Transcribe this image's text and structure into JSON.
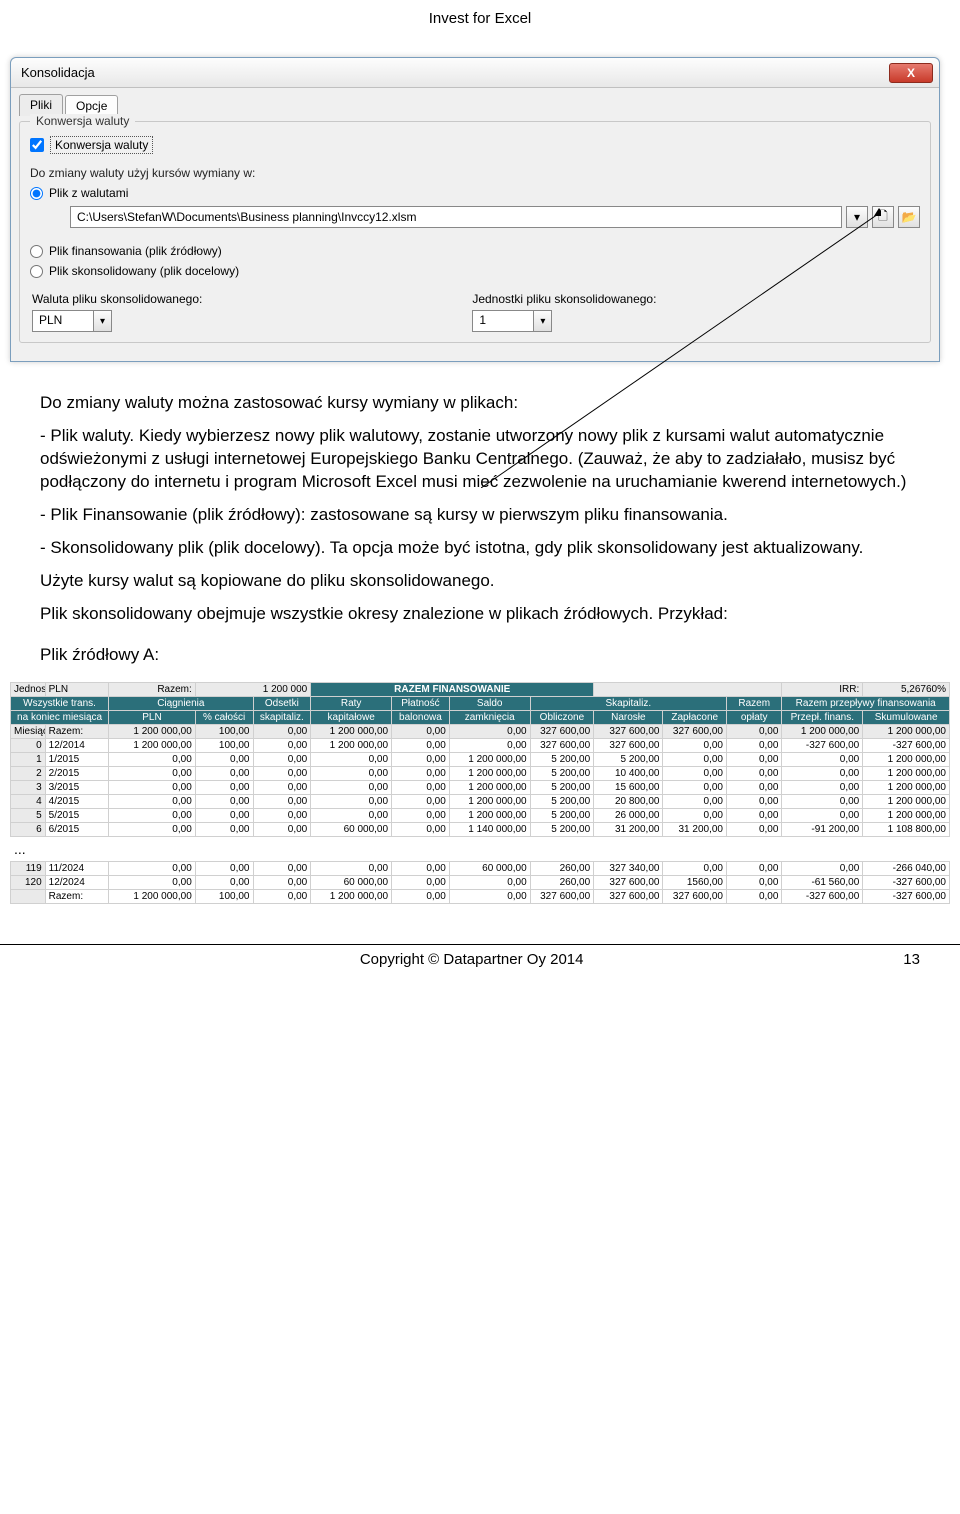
{
  "header": "Invest for Excel",
  "dialog": {
    "title": "Konsolidacja",
    "close": "X",
    "tabs": {
      "t1": "Pliki",
      "t2": "Opcje"
    },
    "group_legend": "Konwersja waluty",
    "chk_label": "Konwersja waluty",
    "subtext": "Do zmiany waluty użyj kursów wymiany w:",
    "radio1": "Plik z walutami",
    "path": "C:\\Users\\StefanW\\Documents\\Business planning\\Invccy12.xlsm",
    "radio2": "Plik finansowania (plik źródłowy)",
    "radio3": "Plik skonsolidowany (plik docelowy)",
    "label_currency": "Waluta pliku skonsolidowanego:",
    "val_currency": "PLN",
    "label_units": "Jednostki pliku skonsolidowanego:",
    "val_units": "1"
  },
  "content": {
    "p1": "Do zmiany waluty można zastosować kursy wymiany w plikach:",
    "p2": "- Plik waluty. Kiedy wybierzesz nowy plik walutowy, zostanie utworzony nowy plik z kursami walut automatycznie odświeżonymi z usługi internetowej Europejskiego Banku Centralnego. (Zauważ, że aby to zadziałało, musisz być podłączony do internetu i program Microsoft Excel musi mieć zezwolenie na uruchamianie kwerend internetowych.)",
    "p3": "- Plik Finansowanie (plik źródłowy): zastosowane są kursy w pierwszym pliku finansowania.",
    "p4": "- Skonsolidowany plik (plik docelowy). Ta opcja może być istotna, gdy plik skonsolidowany jest aktualizowany.",
    "p5": "Użyte kursy walut są kopiowane do pliku skonsolidowanego.",
    "p6": "Plik skonsolidowany obejmuje wszystkie okresy znalezione w plikach źródłowych. Przykład:",
    "p7": "Plik źródłowy A:"
  },
  "table": {
    "top": {
      "unit_lbl": "Jednostka:",
      "unit_val": "PLN",
      "razem_lbl": "Razem:",
      "razem_val": "1 200 000",
      "razem_fin": "RAZEM FINANSOWANIE",
      "irr_lbl": "IRR:",
      "irr_val": "5,26760%"
    },
    "h1": {
      "c1": "Wszystkie trans.",
      "c2": "Ciągnienia",
      "c3": "Odsetki",
      "c4": "Raty",
      "c5": "Płatność",
      "c6": "Saldo",
      "c7": "Skapitaliz.",
      "c8": "Razem",
      "c9": "Razem przepływy finansowania"
    },
    "h2": {
      "c1": "na koniec miesiąca",
      "c2": "PLN",
      "c3": "% całości",
      "c4": "skapitaliz.",
      "c5": "kapitałowe",
      "c6": "balonowa",
      "c7": "zamknięcia",
      "c8": "Obliczone",
      "c9": "Narosłe",
      "c10": "Zapłacone",
      "c11": "opłaty",
      "c12": "Przepł. finans.",
      "c13": "Skumulowane"
    },
    "h3": {
      "miesiac": "Miesiąc",
      "razem": "Razem:"
    },
    "rows": [
      {
        "n": "0",
        "m": "12/2014",
        "c": [
          "1 200 000,00",
          "100,00",
          "0,00",
          "1 200 000,00",
          "0,00",
          "0,00",
          "327 600,00",
          "327 600,00",
          "0,00",
          "0,00",
          "-327 600,00",
          "-327 600,00"
        ]
      },
      {
        "n": "1",
        "m": "1/2015",
        "c": [
          "0,00",
          "0,00",
          "0,00",
          "0,00",
          "0,00",
          "1 200 000,00",
          "5 200,00",
          "5 200,00",
          "0,00",
          "0,00",
          "0,00",
          "1 200 000,00"
        ]
      },
      {
        "n": "2",
        "m": "2/2015",
        "c": [
          "0,00",
          "0,00",
          "0,00",
          "0,00",
          "0,00",
          "1 200 000,00",
          "5 200,00",
          "10 400,00",
          "0,00",
          "0,00",
          "0,00",
          "1 200 000,00"
        ]
      },
      {
        "n": "3",
        "m": "3/2015",
        "c": [
          "0,00",
          "0,00",
          "0,00",
          "0,00",
          "0,00",
          "1 200 000,00",
          "5 200,00",
          "15 600,00",
          "0,00",
          "0,00",
          "0,00",
          "1 200 000,00"
        ]
      },
      {
        "n": "4",
        "m": "4/2015",
        "c": [
          "0,00",
          "0,00",
          "0,00",
          "0,00",
          "0,00",
          "1 200 000,00",
          "5 200,00",
          "20 800,00",
          "0,00",
          "0,00",
          "0,00",
          "1 200 000,00"
        ]
      },
      {
        "n": "5",
        "m": "5/2015",
        "c": [
          "0,00",
          "0,00",
          "0,00",
          "0,00",
          "0,00",
          "1 200 000,00",
          "5 200,00",
          "26 000,00",
          "0,00",
          "0,00",
          "0,00",
          "1 200 000,00"
        ]
      },
      {
        "n": "6",
        "m": "6/2015",
        "c": [
          "0,00",
          "0,00",
          "0,00",
          "60 000,00",
          "0,00",
          "1 140 000,00",
          "5 200,00",
          "31 200,00",
          "31 200,00",
          "0,00",
          "-91 200,00",
          "1 108 800,00"
        ]
      }
    ],
    "rows2": [
      {
        "n": "119",
        "m": "11/2024",
        "c": [
          "0,00",
          "0,00",
          "0,00",
          "0,00",
          "0,00",
          "60 000,00",
          "260,00",
          "327 340,00",
          "0,00",
          "0,00",
          "0,00",
          "-266 040,00"
        ]
      },
      {
        "n": "120",
        "m": "12/2024",
        "c": [
          "0,00",
          "0,00",
          "0,00",
          "60 000,00",
          "0,00",
          "0,00",
          "260,00",
          "327 600,00",
          "1560,00",
          "0,00",
          "-61 560,00",
          "-327 600,00"
        ]
      },
      {
        "n": "",
        "m": "Razem:",
        "c": [
          "1 200 000,00",
          "100,00",
          "0,00",
          "1 200 000,00",
          "0,00",
          "0,00",
          "327 600,00",
          "327 600,00",
          "327 600,00",
          "0,00",
          "-327 600,00",
          "-327 600,00"
        ]
      }
    ],
    "colw": [
      "30px",
      "55px",
      "75px",
      "50px",
      "50px",
      "70px",
      "50px",
      "70px",
      "55px",
      "60px",
      "55px",
      "48px",
      "70px",
      "75px"
    ]
  },
  "footer": {
    "copy": "Copyright © Datapartner Oy 2014",
    "page": "13"
  }
}
